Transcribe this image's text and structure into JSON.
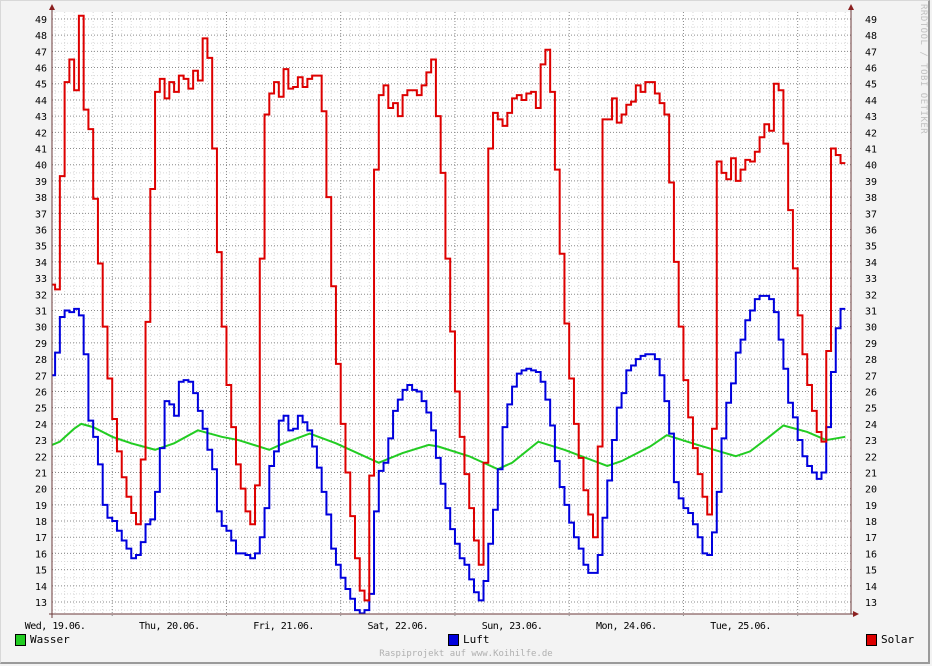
{
  "chart_data": {
    "type": "line",
    "step": true,
    "x_unit": "hours since Wed 19.06. 00:00",
    "xlim": [
      11.35,
      179.2
    ],
    "ylim": [
      12.26,
      49.43
    ],
    "grid": true,
    "yticks": [
      13,
      14,
      15,
      16,
      17,
      18,
      19,
      20,
      21,
      22,
      23,
      24,
      25,
      26,
      27,
      28,
      29,
      30,
      31,
      32,
      33,
      34,
      35,
      36,
      37,
      38,
      39,
      40,
      41,
      42,
      43,
      44,
      45,
      46,
      47,
      48,
      49
    ],
    "xticks": [
      {
        "label": "Wed, 19.06.",
        "hour": 12
      },
      {
        "label": "Thu, 20.06.",
        "hour": 36
      },
      {
        "label": "Fri, 21.06.",
        "hour": 60
      },
      {
        "label": "Sat, 22.06.",
        "hour": 84
      },
      {
        "label": "Sun, 23.06.",
        "hour": 108
      },
      {
        "label": "Mon, 24.06.",
        "hour": 132
      },
      {
        "label": "Tue, 25.06.",
        "hour": 156
      }
    ],
    "start_hour": 11,
    "step_hours": 1,
    "legend_placement": "bottom",
    "series": [
      {
        "name": "Wasser",
        "color": "#22cc22",
        "smooth": true,
        "points": [
          [
            11,
            22.7
          ],
          [
            13,
            22.9
          ],
          [
            16,
            23.7
          ],
          [
            17.5,
            24.0
          ],
          [
            20,
            23.8
          ],
          [
            24,
            23.2
          ],
          [
            28,
            22.8
          ],
          [
            33,
            22.4
          ],
          [
            37,
            22.8
          ],
          [
            42,
            23.6
          ],
          [
            47,
            23.2
          ],
          [
            50.5,
            23.0
          ],
          [
            57,
            22.4
          ],
          [
            60,
            22.8
          ],
          [
            65.5,
            23.4
          ],
          [
            71,
            22.8
          ],
          [
            80,
            21.6
          ],
          [
            85,
            22.2
          ],
          [
            90.5,
            22.7
          ],
          [
            92.5,
            22.6
          ],
          [
            99,
            22.0
          ],
          [
            105,
            21.2
          ],
          [
            108,
            21.6
          ],
          [
            113.5,
            22.9
          ],
          [
            119,
            22.4
          ],
          [
            128,
            21.4
          ],
          [
            131,
            21.7
          ],
          [
            137,
            22.6
          ],
          [
            140.5,
            23.3
          ],
          [
            147,
            22.7
          ],
          [
            155,
            22.0
          ],
          [
            158,
            22.3
          ],
          [
            162,
            23.2
          ],
          [
            165,
            23.9
          ],
          [
            170,
            23.5
          ],
          [
            174,
            23.0
          ],
          [
            178,
            23.2
          ]
        ]
      },
      {
        "name": "Luft",
        "color": "#0000dd",
        "values": [
          27.0,
          28.4,
          30.6,
          31.0,
          30.9,
          31.1,
          30.7,
          28.3,
          24.2,
          23.2,
          21.5,
          19.0,
          18.2,
          18.0,
          17.4,
          16.8,
          16.3,
          15.7,
          15.9,
          16.7,
          17.8,
          18.1,
          19.8,
          22.5,
          25.4,
          25.2,
          24.5,
          26.6,
          26.7,
          26.6,
          25.9,
          24.8,
          23.7,
          22.4,
          21.2,
          18.6,
          17.7,
          17.4,
          16.8,
          16.0,
          16.0,
          15.9,
          15.7,
          16.0,
          17.0,
          18.8,
          21.4,
          22.3,
          24.2,
          24.5,
          23.6,
          23.7,
          24.5,
          24.1,
          23.6,
          22.6,
          21.3,
          19.8,
          18.4,
          16.3,
          15.3,
          14.5,
          13.8,
          13.2,
          12.5,
          12.3,
          12.5,
          13.5,
          18.6,
          21.1,
          21.6,
          23.1,
          24.8,
          25.5,
          26.1,
          26.4,
          26.1,
          26.0,
          25.4,
          24.7,
          23.6,
          21.9,
          20.3,
          18.8,
          17.5,
          16.6,
          15.7,
          15.3,
          14.4,
          13.6,
          13.1,
          14.3,
          16.6,
          18.7,
          21.2,
          23.8,
          25.2,
          26.3,
          27.1,
          27.3,
          27.4,
          27.3,
          27.2,
          26.6,
          25.5,
          23.9,
          21.7,
          20.1,
          19.0,
          17.9,
          17.0,
          16.3,
          15.3,
          14.8,
          14.8,
          15.9,
          18.2,
          20.5,
          23.0,
          25.0,
          25.9,
          27.3,
          27.6,
          28.0,
          28.2,
          28.3,
          28.3,
          28.0,
          27.0,
          25.4,
          23.4,
          20.4,
          19.4,
          18.8,
          18.5,
          17.8,
          17.0,
          16.0,
          15.9,
          17.3,
          19.8,
          23.1,
          25.3,
          26.5,
          28.4,
          29.2,
          30.4,
          31.0,
          31.7,
          31.9,
          31.9,
          31.7,
          30.9,
          29.2,
          27.4,
          25.3,
          24.4,
          23.0,
          22.0,
          21.4,
          21.0,
          20.6,
          21.0,
          23.8,
          27.2,
          29.9,
          31.1
        ]
      },
      {
        "name": "Solar",
        "color": "#dd0000",
        "values": [
          32.6,
          32.3,
          39.3,
          45.1,
          46.5,
          44.6,
          49.2,
          43.4,
          42.2,
          37.9,
          33.9,
          30.0,
          26.8,
          24.3,
          22.3,
          20.7,
          19.5,
          18.5,
          17.8,
          21.8,
          30.3,
          38.5,
          44.5,
          45.3,
          44.1,
          45.1,
          44.5,
          45.5,
          45.3,
          44.7,
          45.8,
          45.2,
          47.8,
          46.6,
          41.0,
          34.6,
          30.0,
          26.4,
          23.8,
          21.5,
          20.0,
          18.6,
          17.8,
          20.2,
          34.2,
          43.1,
          44.4,
          45.1,
          44.2,
          45.9,
          44.7,
          44.8,
          45.4,
          44.8,
          45.3,
          45.5,
          45.5,
          43.3,
          38.0,
          32.5,
          27.7,
          24.0,
          21.0,
          18.3,
          15.7,
          13.7,
          13.1,
          20.8,
          39.7,
          44.3,
          44.9,
          43.5,
          43.8,
          43.0,
          44.3,
          44.6,
          44.6,
          44.3,
          44.9,
          45.7,
          46.5,
          43.0,
          39.5,
          34.2,
          29.7,
          26.0,
          23.2,
          20.9,
          18.8,
          16.8,
          15.3,
          21.6,
          41.0,
          43.2,
          42.8,
          42.4,
          43.2,
          44.1,
          44.3,
          44.0,
          44.4,
          44.5,
          43.5,
          46.2,
          47.1,
          44.5,
          39.7,
          34.5,
          30.2,
          26.8,
          24.0,
          21.9,
          19.9,
          18.4,
          17.0,
          22.6,
          42.8,
          42.8,
          44.1,
          42.6,
          43.1,
          43.7,
          43.9,
          44.9,
          44.5,
          45.1,
          45.1,
          44.4,
          43.8,
          43.1,
          38.9,
          34.0,
          30.0,
          26.7,
          24.4,
          22.5,
          20.9,
          19.5,
          18.4,
          23.7,
          40.2,
          39.5,
          39.1,
          40.4,
          39.0,
          39.7,
          40.3,
          40.2,
          40.8,
          41.7,
          42.5,
          42.1,
          45.0,
          44.6,
          41.3,
          37.2,
          33.6,
          30.7,
          28.3,
          26.4,
          24.8,
          23.5,
          22.9,
          28.5,
          41.0,
          40.6,
          40.1
        ]
      }
    ]
  },
  "legend": {
    "wasser": "Wasser",
    "luft": "Luft",
    "solar": "Solar"
  },
  "footer": "Raspiprojekt auf www.Koihilfe.de",
  "watermark": "RRDTOOL / TOBI OETIKER"
}
